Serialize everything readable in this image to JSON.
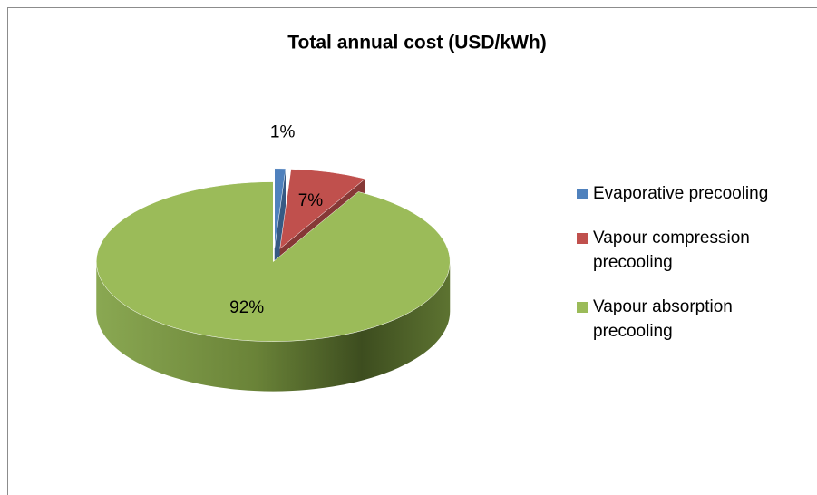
{
  "chart_data": {
    "type": "pie",
    "title": "Total annual cost (USD/kWh)",
    "categories": [
      "Evaporative precooling",
      "Vapour compression precooling",
      "Vapour absorption precooling"
    ],
    "values": [
      1,
      7,
      92
    ],
    "value_labels": [
      "1%",
      "7%",
      "92%"
    ],
    "colors": [
      "#4f81bd",
      "#c0504d",
      "#9bbb59"
    ],
    "legend": "right"
  }
}
